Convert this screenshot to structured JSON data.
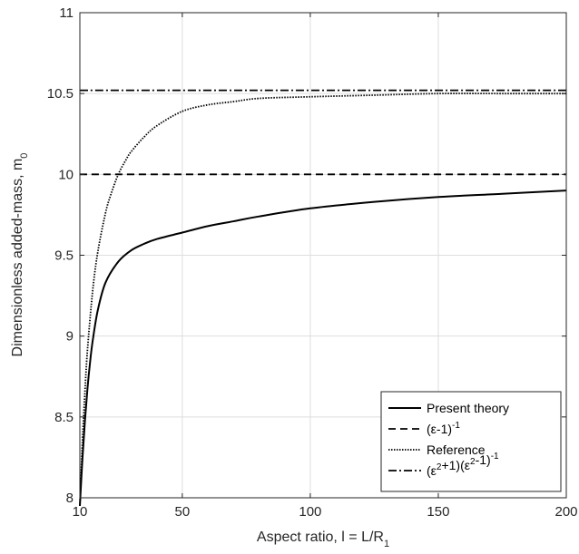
{
  "chart_data": {
    "type": "line",
    "xlabel": "Aspect ratio, l = L/R",
    "xlabel_sub": "1",
    "ylabel": "Dimensionless added-mass, m",
    "ylabel_sub": "0",
    "xlim": [
      10,
      200
    ],
    "ylim": [
      8,
      11
    ],
    "x_ticks": [
      10,
      50,
      100,
      150,
      200
    ],
    "y_ticks": [
      8,
      8.5,
      9,
      9.5,
      10,
      10.5,
      11
    ],
    "y_tick_labels": [
      "8",
      "8.5",
      "9",
      "9.5",
      "10",
      "10.5",
      "11"
    ],
    "grid": true,
    "legend_position": "bottom-right",
    "series": [
      {
        "name": "Present theory",
        "style": "solid",
        "x": [
          10,
          11,
          12,
          13,
          14,
          15,
          17,
          20,
          25,
          30,
          35,
          40,
          50,
          60,
          70,
          80,
          100,
          125,
          150,
          175,
          200
        ],
        "y": [
          7.95,
          8.24,
          8.48,
          8.68,
          8.84,
          8.97,
          9.16,
          9.33,
          9.46,
          9.53,
          9.57,
          9.6,
          9.64,
          9.68,
          9.71,
          9.74,
          9.79,
          9.83,
          9.86,
          9.88,
          9.9
        ]
      },
      {
        "name": "(ε-1)⁻¹",
        "style": "dashed",
        "x": [
          10,
          200
        ],
        "y": [
          10.0,
          10.0
        ]
      },
      {
        "name": "Reference",
        "style": "dotted",
        "x": [
          10,
          11,
          12,
          13,
          15,
          17,
          20,
          22,
          25,
          28,
          30,
          35,
          40,
          50,
          60,
          70,
          80,
          100,
          125,
          150,
          175,
          200
        ],
        "y": [
          7.95,
          8.35,
          8.66,
          8.92,
          9.28,
          9.52,
          9.76,
          9.87,
          10.0,
          10.09,
          10.14,
          10.23,
          10.3,
          10.39,
          10.43,
          10.45,
          10.47,
          10.48,
          10.49,
          10.5,
          10.5,
          10.5
        ]
      },
      {
        "name": "(ε²+1)(ε²-1)⁻¹",
        "style": "dashdot",
        "x": [
          10,
          200
        ],
        "y": [
          10.52,
          10.52
        ]
      }
    ],
    "legend": [
      {
        "pre": "Present theory",
        "sup": "",
        "mid": "",
        "sup2": "",
        "post": ""
      },
      {
        "pre": "(ε-1)",
        "sup": "-1",
        "mid": "",
        "sup2": "",
        "post": ""
      },
      {
        "pre": "Reference",
        "sup": "",
        "mid": "",
        "sup2": "",
        "post": ""
      },
      {
        "pre": "(ε",
        "sup": "2",
        "mid": "+1)(ε",
        "sup2": "2",
        "post": "-1)",
        "sup3": "-1"
      }
    ]
  }
}
